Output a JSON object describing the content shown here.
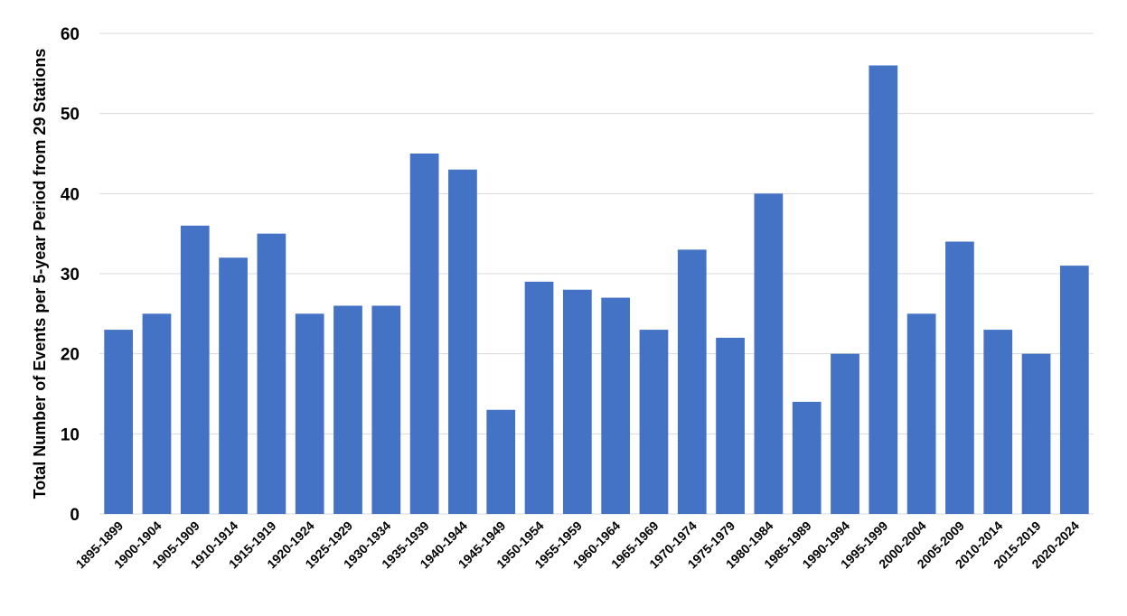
{
  "chart_data": {
    "type": "bar",
    "title": "",
    "xlabel": "",
    "ylabel": "Total Number of Events per 5-year Period from 29 Stations",
    "ylim": [
      0,
      60
    ],
    "yticks": [
      0,
      10,
      20,
      30,
      40,
      50,
      60
    ],
    "grid": true,
    "legend": "none",
    "bar_color": "#4472C4",
    "categories": [
      "1895-1899",
      "1900-1904",
      "1905-1909",
      "1910-1914",
      "1915-1919",
      "1920-1924",
      "1925-1929",
      "1930-1934",
      "1935-1939",
      "1940-1944",
      "1945-1949",
      "1950-1954",
      "1955-1959",
      "1960-1964",
      "1965-1969",
      "1970-1974",
      "1975-1979",
      "1980-1984",
      "1985-1989",
      "1990-1994",
      "1995-1999",
      "2000-2004",
      "2005-2009",
      "2010-2014",
      "2015-2019",
      "2020-2024"
    ],
    "values": [
      23,
      25,
      36,
      32,
      35,
      25,
      26,
      26,
      45,
      43,
      13,
      29,
      28,
      27,
      23,
      33,
      22,
      40,
      14,
      20,
      56,
      25,
      34,
      23,
      20,
      31
    ]
  }
}
